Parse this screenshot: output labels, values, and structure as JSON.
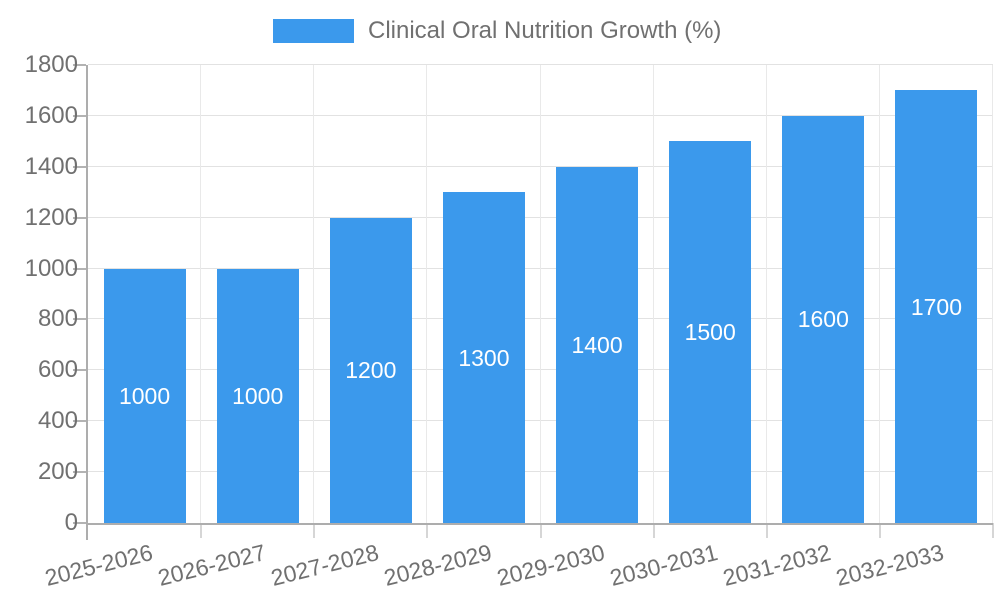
{
  "legend": {
    "label": "Clinical Oral Nutrition Growth (%)",
    "position": "top-center"
  },
  "chart_data": {
    "type": "bar",
    "title": "Clinical Oral Nutrition Growth (%)",
    "categories": [
      "2025-2026",
      "2026-2027",
      "2027-2028",
      "2028-2029",
      "2029-2030",
      "2030-2031",
      "2031-2032",
      "2032-2033"
    ],
    "values": [
      1000,
      1000,
      1200,
      1300,
      1400,
      1500,
      1600,
      1700
    ],
    "xlabel": "",
    "ylabel": "",
    "ylim": [
      0,
      1800
    ],
    "yticks": [
      0,
      200,
      400,
      600,
      800,
      1000,
      1200,
      1400,
      1600,
      1800
    ],
    "grid": true,
    "legend_position": "top",
    "bar_labels_inside": true,
    "x_label_rotation_deg": -14,
    "colors": {
      "bar": "#3B99EC",
      "bar_label": "#FFFFFF",
      "axis_line": "#ADADAD",
      "grid_line_h": "#E2E2E2",
      "grid_line_v": "#E9E9E9",
      "tick_label": "#707070",
      "x_tick_mark": "#D6D6D6",
      "y_tick_mark": "#B3B3B3"
    }
  }
}
